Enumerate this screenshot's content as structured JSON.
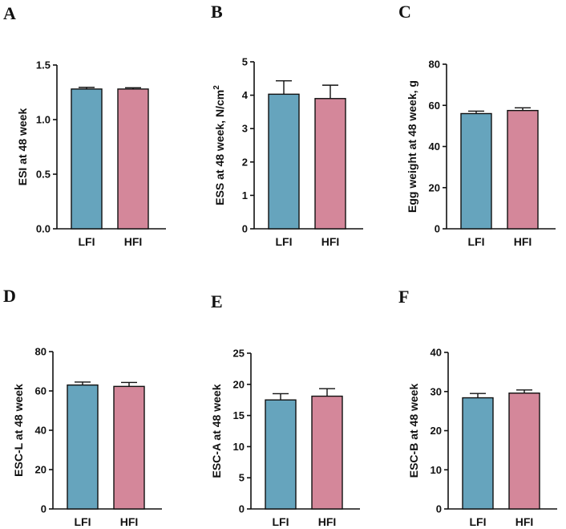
{
  "colors": {
    "LFI": "#66a4bd",
    "HFI": "#d4879a",
    "axis": "#111111"
  },
  "chart_data": [
    {
      "panel": "A",
      "type": "bar",
      "categories": [
        "LFI",
        "HFI"
      ],
      "values": [
        1.28,
        1.28
      ],
      "errors": [
        0.015,
        0.012
      ],
      "ylabel": "ESI at 48 week",
      "ylabel_sup": "",
      "ylim": [
        0,
        1.5
      ],
      "yticks": [
        0,
        0.5,
        1.0,
        1.5
      ],
      "ytick_labels": [
        "0.0",
        "0.5",
        "1.0",
        "1.5"
      ],
      "grid": false,
      "legend": "none"
    },
    {
      "panel": "B",
      "type": "bar",
      "categories": [
        "LFI",
        "HFI"
      ],
      "values": [
        4.03,
        3.9
      ],
      "errors": [
        0.4,
        0.4
      ],
      "ylabel": "ESS at 48 week, N/cm",
      "ylabel_sup": "2",
      "ylim": [
        0,
        5
      ],
      "yticks": [
        0,
        1,
        2,
        3,
        4,
        5
      ],
      "ytick_labels": [
        "0",
        "1",
        "2",
        "3",
        "4",
        "5"
      ],
      "grid": false,
      "legend": "none"
    },
    {
      "panel": "C",
      "type": "bar",
      "categories": [
        "LFI",
        "HFI"
      ],
      "values": [
        56.0,
        57.5
      ],
      "errors": [
        1.2,
        1.3
      ],
      "ylabel": "Egg weight at 48 week, g",
      "ylabel_sup": "",
      "ylim": [
        0,
        80
      ],
      "yticks": [
        0,
        20,
        40,
        60,
        80
      ],
      "ytick_labels": [
        "0",
        "20",
        "40",
        "60",
        "80"
      ],
      "grid": false,
      "legend": "none"
    },
    {
      "panel": "D",
      "type": "bar",
      "categories": [
        "LFI",
        "HFI"
      ],
      "values": [
        63.0,
        62.3
      ],
      "errors": [
        1.5,
        2.0
      ],
      "ylabel": "ESC-L at 48 week",
      "ylabel_sup": "",
      "ylim": [
        0,
        80
      ],
      "yticks": [
        0,
        20,
        40,
        60,
        80
      ],
      "ytick_labels": [
        "0",
        "20",
        "40",
        "60",
        "80"
      ],
      "grid": false,
      "legend": "none"
    },
    {
      "panel": "E",
      "type": "bar",
      "categories": [
        "LFI",
        "HFI"
      ],
      "values": [
        17.5,
        18.1
      ],
      "errors": [
        1.0,
        1.2
      ],
      "ylabel": "ESC-A at 48 week",
      "ylabel_sup": "",
      "ylim": [
        0,
        25
      ],
      "yticks": [
        0,
        5,
        10,
        15,
        20,
        25
      ],
      "ytick_labels": [
        "0",
        "5",
        "10",
        "15",
        "20",
        "25"
      ],
      "grid": false,
      "legend": "none"
    },
    {
      "panel": "F",
      "type": "bar",
      "categories": [
        "LFI",
        "HFI"
      ],
      "values": [
        28.4,
        29.6
      ],
      "errors": [
        1.1,
        0.8
      ],
      "ylabel": "ESC-B at 48 week",
      "ylabel_sup": "",
      "ylim": [
        0,
        40
      ],
      "yticks": [
        0,
        10,
        20,
        30,
        40
      ],
      "ytick_labels": [
        "0",
        "10",
        "20",
        "30",
        "40"
      ],
      "grid": false,
      "legend": "none"
    }
  ]
}
